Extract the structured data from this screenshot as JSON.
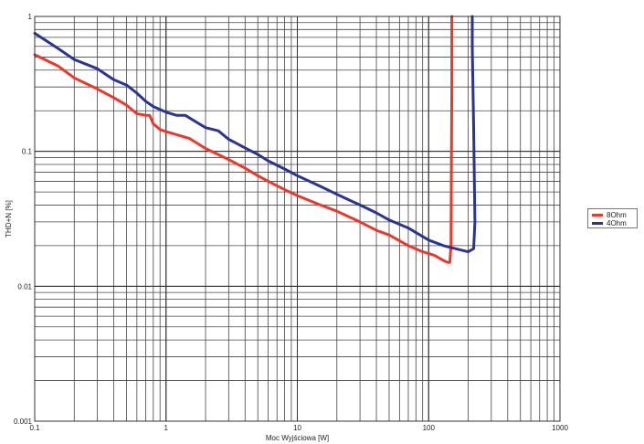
{
  "chart_data": {
    "type": "line",
    "title": "",
    "xlabel": "Moc Wyjściowa [W]",
    "ylabel": "THD+N [%]",
    "x_scale": "log",
    "y_scale": "log",
    "xlim": [
      0.1,
      1000
    ],
    "ylim": [
      0.001,
      1
    ],
    "x_ticks": [
      "0.1",
      "1",
      "10",
      "100",
      "1000"
    ],
    "y_ticks": [
      "1",
      "0.1",
      "0.01",
      "0.001"
    ],
    "grid": true,
    "legend_position": "right",
    "series": [
      {
        "name": "8Ohm",
        "color": "#e8392c",
        "x": [
          0.1,
          0.15,
          0.2,
          0.3,
          0.4,
          0.5,
          0.6,
          0.7,
          0.75,
          0.8,
          0.9,
          1.0,
          1.5,
          2.0,
          3.0,
          4.0,
          5.0,
          6.0,
          8.0,
          10,
          15,
          20,
          30,
          40,
          50,
          70,
          90,
          110,
          130,
          140,
          145,
          148,
          150,
          150
        ],
        "y": [
          0.52,
          0.43,
          0.35,
          0.29,
          0.25,
          0.22,
          0.19,
          0.185,
          0.185,
          0.16,
          0.145,
          0.14,
          0.125,
          0.105,
          0.087,
          0.075,
          0.066,
          0.06,
          0.052,
          0.047,
          0.04,
          0.036,
          0.03,
          0.026,
          0.024,
          0.02,
          0.018,
          0.017,
          0.0155,
          0.015,
          0.015,
          0.02,
          0.3,
          1.0
        ]
      },
      {
        "name": "4Ohm",
        "color": "#2b3590",
        "x": [
          0.1,
          0.15,
          0.2,
          0.3,
          0.4,
          0.5,
          0.6,
          0.7,
          0.8,
          1.0,
          1.2,
          1.4,
          1.7,
          2.0,
          2.5,
          3.0,
          4.0,
          5.0,
          6.0,
          8.0,
          10,
          15,
          20,
          30,
          40,
          50,
          70,
          100,
          130,
          160,
          200,
          220,
          225,
          220,
          215,
          215
        ],
        "y": [
          0.75,
          0.58,
          0.48,
          0.41,
          0.34,
          0.31,
          0.27,
          0.235,
          0.215,
          0.195,
          0.185,
          0.185,
          0.165,
          0.15,
          0.142,
          0.123,
          0.106,
          0.095,
          0.085,
          0.074,
          0.066,
          0.055,
          0.048,
          0.04,
          0.035,
          0.031,
          0.027,
          0.022,
          0.02,
          0.019,
          0.018,
          0.019,
          0.03,
          0.15,
          0.6,
          1.0
        ]
      }
    ]
  },
  "legend": {
    "items": [
      {
        "label": "8Ohm",
        "color": "#e8392c"
      },
      {
        "label": "4Ohm",
        "color": "#2b3590"
      }
    ]
  }
}
